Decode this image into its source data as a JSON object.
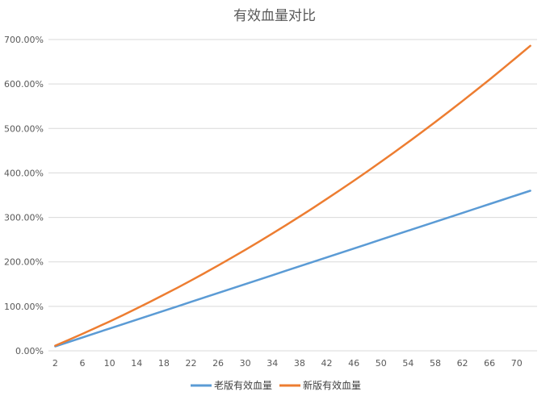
{
  "chart_data": {
    "type": "line",
    "title": "有效血量对比",
    "xlabel": "",
    "ylabel": "",
    "x": [
      2,
      4,
      6,
      8,
      10,
      12,
      14,
      16,
      18,
      20,
      22,
      24,
      26,
      28,
      30,
      32,
      34,
      36,
      38,
      40,
      42,
      44,
      46,
      48,
      50,
      52,
      54,
      56,
      58,
      60,
      62,
      64,
      66,
      68,
      70,
      72
    ],
    "x_tick_labels": [
      "2",
      "6",
      "10",
      "14",
      "18",
      "22",
      "26",
      "30",
      "34",
      "38",
      "42",
      "46",
      "50",
      "54",
      "58",
      "62",
      "66",
      "70"
    ],
    "ylim": [
      0,
      700
    ],
    "y_tick_labels": [
      "0.00%",
      "100.00%",
      "200.00%",
      "300.00%",
      "400.00%",
      "500.00%",
      "600.00%",
      "700.00%"
    ],
    "y_unit": "%",
    "grid": true,
    "legend_position": "bottom",
    "series": [
      {
        "name": "老版有效血量",
        "color": "#5B9BD5",
        "values": [
          10,
          20,
          30,
          40,
          50,
          60,
          70,
          80,
          90,
          100,
          110,
          120,
          130,
          140,
          150,
          160,
          170,
          180,
          190,
          200,
          210,
          220,
          230,
          240,
          250,
          260,
          270,
          280,
          290,
          300,
          310,
          320,
          330,
          340,
          350,
          360
        ]
      },
      {
        "name": "新版有效血量",
        "color": "#ED7D31",
        "values": [
          11.6,
          24.7,
          38.1,
          51.8,
          65.9,
          80.4,
          95.2,
          110.4,
          126.0,
          141.9,
          158.2,
          174.9,
          191.9,
          209.3,
          227.1,
          245.2,
          263.7,
          282.5,
          301.8,
          321.4,
          341.4,
          361.7,
          382.4,
          403.5,
          425.0,
          446.8,
          469.0,
          491.6,
          514.6,
          537.9,
          561.6,
          585.7,
          610.1,
          635.0,
          660.2,
          685.8
        ]
      }
    ]
  }
}
